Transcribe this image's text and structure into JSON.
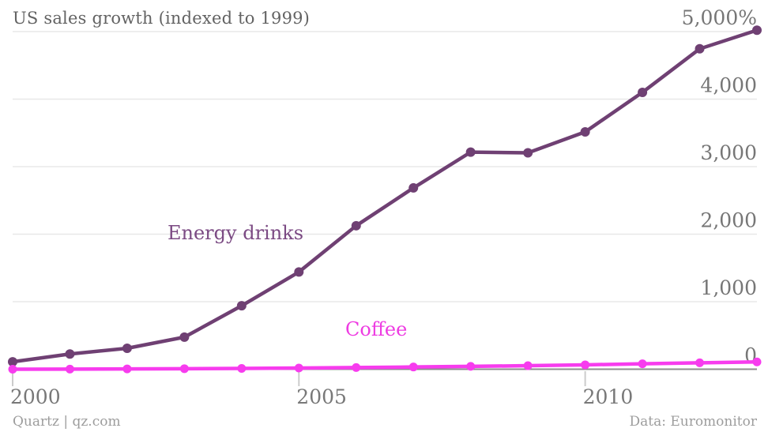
{
  "header": {
    "title": "US sales growth (indexed to 1999)"
  },
  "footer": {
    "source_left": "Quartz | qz.com",
    "source_right": "Data: Euromonitor"
  },
  "colors": {
    "background": "#ffffff",
    "title_text": "#636363",
    "tick_text": "#767676",
    "footnote_text": "#9d9d9d",
    "gridline": "#e8e8e8",
    "axis_line": "#8c8c8c",
    "tick_mark": "#cccccc",
    "energy_drinks": "#6F4073",
    "energy_drinks_label": "#7B4A83",
    "coffee": "#F73CEE",
    "coffee_label": "#EE3CE2"
  },
  "chart_data": {
    "type": "line",
    "title": "US sales growth (indexed to 1999)",
    "xlabel": "",
    "ylabel": "",
    "x": [
      2000,
      2001,
      2002,
      2003,
      2004,
      2005,
      2006,
      2007,
      2008,
      2009,
      2010,
      2011,
      2012,
      2013
    ],
    "xlim": [
      2000,
      2013
    ],
    "ylim": [
      0,
      5000
    ],
    "grid": true,
    "legend": "inline-series-labels",
    "x_ticks": [
      {
        "v": 2000,
        "label": "2000"
      },
      {
        "v": 2005,
        "label": "2005"
      },
      {
        "v": 2010,
        "label": "2010"
      }
    ],
    "y_ticks": [
      {
        "v": 0,
        "label": "0"
      },
      {
        "v": 1000,
        "label": "1,000"
      },
      {
        "v": 2000,
        "label": "2,000"
      },
      {
        "v": 3000,
        "label": "3,000"
      },
      {
        "v": 4000,
        "label": "4,000"
      },
      {
        "v": 5000,
        "label": "5,000%"
      }
    ],
    "series": [
      {
        "name": "Energy drinks",
        "color": "#6F4073",
        "label_color": "#7B4A83",
        "values": [
          110,
          225,
          310,
          475,
          940,
          1440,
          2125,
          2685,
          3215,
          3205,
          3515,
          4100,
          4745,
          5020
        ]
      },
      {
        "name": "Coffee",
        "color": "#F73CEE",
        "label_color": "#EE3CE2",
        "values": [
          0,
          2,
          5,
          8,
          12,
          18,
          25,
          33,
          42,
          52,
          65,
          80,
          95,
          108
        ]
      }
    ]
  }
}
